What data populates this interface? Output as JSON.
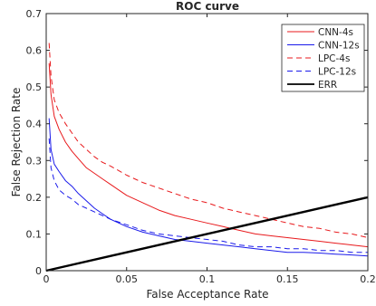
{
  "chart_data": {
    "type": "line",
    "title": "ROC curve",
    "xlabel": "False Acceptance Rate",
    "ylabel": "False Rejection Rate",
    "xlim": [
      0,
      0.2
    ],
    "ylim": [
      0,
      0.7
    ],
    "xticks": [
      0,
      0.05,
      0.1,
      0.15,
      0.2
    ],
    "xtick_labels": [
      "0",
      "0.05",
      "0.1",
      "0.15",
      "0.2"
    ],
    "yticks": [
      0,
      0.1,
      0.2,
      0.3,
      0.4,
      0.5,
      0.6,
      0.7
    ],
    "ytick_labels": [
      "0",
      "0.1",
      "0.2",
      "0.3",
      "0.4",
      "0.5",
      "0.6",
      "0.7"
    ],
    "grid": false,
    "legend_position": "top-right",
    "series": [
      {
        "name": "CNN-4s",
        "color": "#e8191c",
        "dash": "solid",
        "x": [
          0.0018,
          0.003,
          0.005,
          0.008,
          0.012,
          0.016,
          0.02,
          0.025,
          0.03,
          0.035,
          0.04,
          0.05,
          0.06,
          0.07,
          0.08,
          0.09,
          0.1,
          0.11,
          0.12,
          0.13,
          0.14,
          0.15,
          0.16,
          0.17,
          0.18,
          0.19,
          0.2
        ],
        "y": [
          0.565,
          0.48,
          0.42,
          0.385,
          0.35,
          0.325,
          0.305,
          0.28,
          0.265,
          0.25,
          0.235,
          0.205,
          0.185,
          0.165,
          0.15,
          0.14,
          0.13,
          0.12,
          0.11,
          0.1,
          0.095,
          0.09,
          0.085,
          0.08,
          0.075,
          0.07,
          0.065
        ]
      },
      {
        "name": "CNN-12s",
        "color": "#1a1aea",
        "dash": "solid",
        "x": [
          0.0018,
          0.003,
          0.005,
          0.008,
          0.012,
          0.016,
          0.02,
          0.025,
          0.03,
          0.035,
          0.04,
          0.05,
          0.06,
          0.07,
          0.08,
          0.09,
          0.1,
          0.11,
          0.12,
          0.13,
          0.14,
          0.15,
          0.16,
          0.17,
          0.18,
          0.19,
          0.2
        ],
        "y": [
          0.415,
          0.33,
          0.29,
          0.27,
          0.245,
          0.23,
          0.21,
          0.19,
          0.17,
          0.155,
          0.14,
          0.12,
          0.105,
          0.095,
          0.085,
          0.08,
          0.075,
          0.07,
          0.065,
          0.06,
          0.055,
          0.05,
          0.05,
          0.048,
          0.045,
          0.043,
          0.04
        ]
      },
      {
        "name": "LPC-4s",
        "color": "#e8191c",
        "dash": "dashed",
        "x": [
          0.0018,
          0.003,
          0.005,
          0.008,
          0.012,
          0.016,
          0.02,
          0.025,
          0.03,
          0.035,
          0.04,
          0.05,
          0.06,
          0.07,
          0.08,
          0.09,
          0.1,
          0.11,
          0.12,
          0.13,
          0.14,
          0.15,
          0.16,
          0.17,
          0.18,
          0.19,
          0.2
        ],
        "y": [
          0.62,
          0.53,
          0.465,
          0.43,
          0.4,
          0.375,
          0.35,
          0.33,
          0.31,
          0.295,
          0.285,
          0.26,
          0.24,
          0.225,
          0.21,
          0.195,
          0.185,
          0.17,
          0.16,
          0.15,
          0.14,
          0.13,
          0.12,
          0.115,
          0.105,
          0.1,
          0.09
        ]
      },
      {
        "name": "LPC-12s",
        "color": "#1a1aea",
        "dash": "dashed",
        "x": [
          0.0018,
          0.003,
          0.005,
          0.008,
          0.012,
          0.016,
          0.02,
          0.025,
          0.03,
          0.035,
          0.04,
          0.05,
          0.06,
          0.07,
          0.08,
          0.09,
          0.1,
          0.11,
          0.12,
          0.13,
          0.14,
          0.15,
          0.16,
          0.17,
          0.18,
          0.19,
          0.2
        ],
        "y": [
          0.36,
          0.28,
          0.245,
          0.22,
          0.205,
          0.195,
          0.18,
          0.17,
          0.16,
          0.15,
          0.14,
          0.125,
          0.11,
          0.1,
          0.095,
          0.09,
          0.085,
          0.08,
          0.07,
          0.065,
          0.065,
          0.06,
          0.06,
          0.055,
          0.055,
          0.05,
          0.05
        ]
      },
      {
        "name": "ERR",
        "color": "#000000",
        "dash": "solid",
        "width": 2.4,
        "x": [
          0,
          0.2
        ],
        "y": [
          0,
          0.2
        ]
      }
    ]
  }
}
